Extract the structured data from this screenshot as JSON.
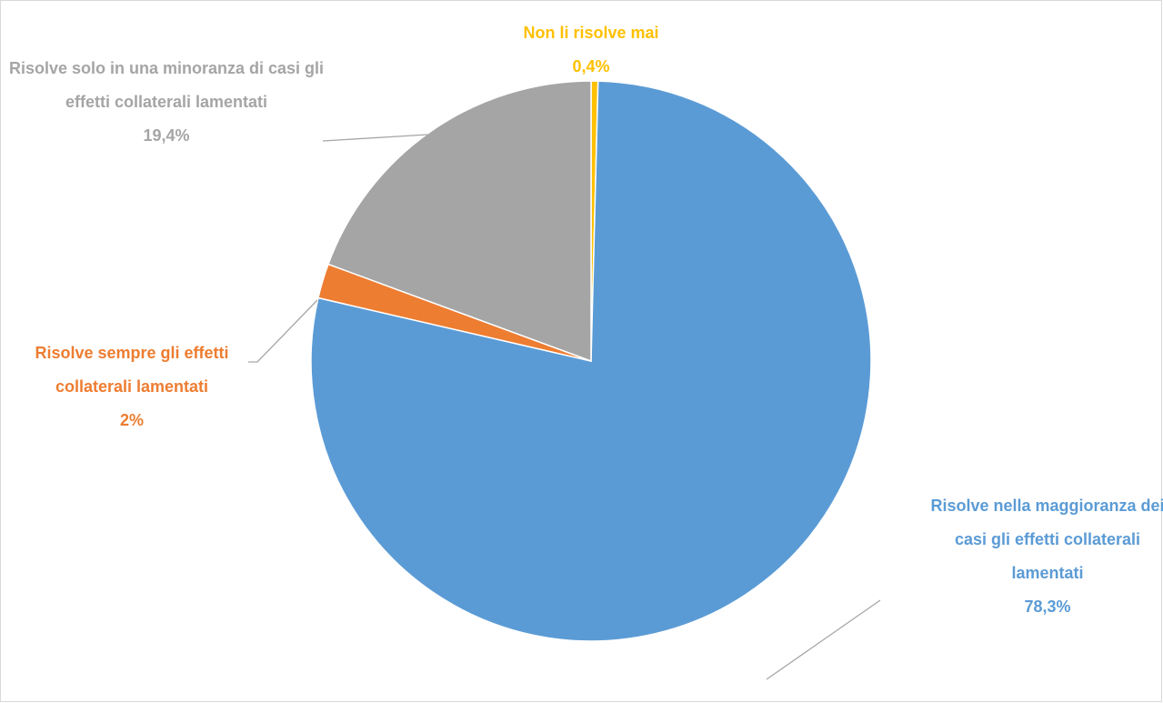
{
  "chart_data": {
    "type": "pie",
    "categories": [
      "Non li risolve mai",
      "Risolve nella maggioranza dei casi gli effetti collaterali lamentati",
      "Risolve sempre gli effetti collaterali lamentati",
      "Risolve solo in una minoranza di casi gli effetti collaterali lamentati"
    ],
    "values": [
      0.4,
      78.3,
      2,
      19.4
    ],
    "value_labels": [
      "0,4%",
      "78,3%",
      "2%",
      "19,4%"
    ],
    "colors": [
      "#ffc000",
      "#5b9bd5",
      "#ed7d31",
      "#a5a5a5"
    ]
  }
}
